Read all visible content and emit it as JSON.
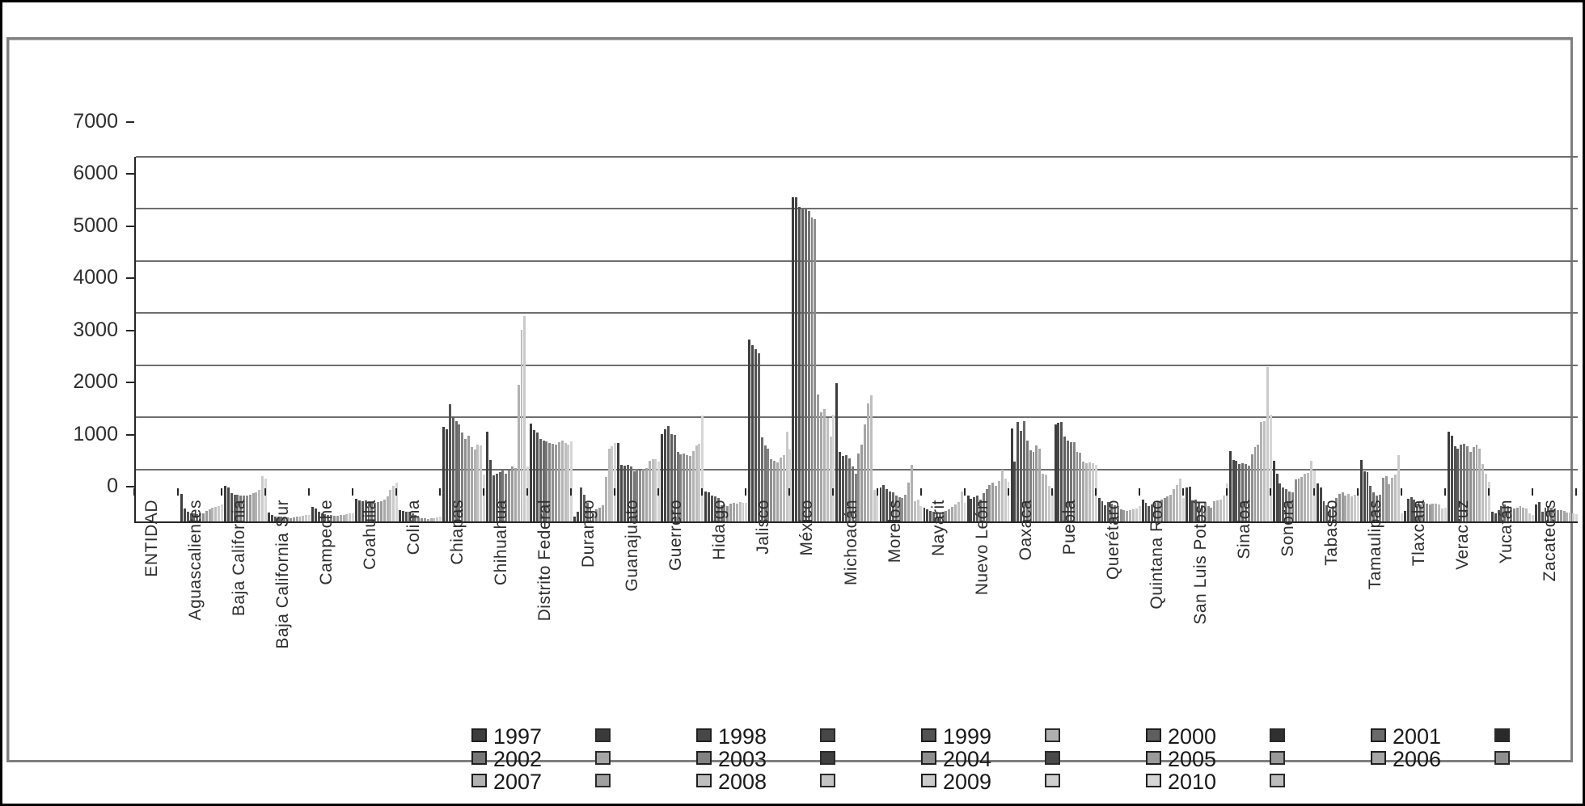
{
  "frame": {
    "outer_border_color": "#000000",
    "inner_border_color": "#7f7f7f",
    "background": "#ffffff"
  },
  "chart_data": {
    "type": "bar",
    "title": "",
    "xlabel": "",
    "ylabel": "",
    "ylim": [
      0,
      7000
    ],
    "yticks": [
      0,
      1000,
      2000,
      3000,
      4000,
      5000,
      6000,
      7000
    ],
    "grid": "horizontal",
    "legend_position": "bottom",
    "axis_header_category": "ENTIDAD",
    "years": [
      "1997",
      "1998",
      "1999",
      "2000",
      "2001",
      "2002",
      "2003",
      "2004",
      "2005",
      "2006",
      "2007",
      "2008",
      "2009",
      "2010"
    ],
    "year_colors": [
      "#3d3d3d",
      "#474747",
      "#525252",
      "#5e5e5e",
      "#6a6a6a",
      "#767676",
      "#828282",
      "#8e8e8e",
      "#9a9a9a",
      "#a6a6a6",
      "#b2b2b2",
      "#bebebe",
      "#cacaca",
      "#d6d6d6"
    ],
    "entities": [
      {
        "name": "Aguascalientes",
        "values": [
          535,
          250,
          180,
          160,
          150,
          140,
          150,
          160,
          200,
          230,
          260,
          280,
          300,
          320
        ]
      },
      {
        "name": "Baja California",
        "values": [
          690,
          650,
          540,
          520,
          510,
          500,
          490,
          500,
          520,
          540,
          560,
          600,
          870,
          830
        ]
      },
      {
        "name": "Baja California Sur",
        "values": [
          170,
          120,
          100,
          90,
          90,
          80,
          80,
          70,
          80,
          90,
          100,
          110,
          120,
          130
        ]
      },
      {
        "name": "Campeche",
        "values": [
          280,
          250,
          180,
          150,
          140,
          130,
          120,
          110,
          110,
          120,
          130,
          140,
          150,
          160
        ]
      },
      {
        "name": "Coahuila",
        "values": [
          430,
          410,
          390,
          400,
          380,
          370,
          360,
          370,
          390,
          420,
          480,
          610,
          690,
          745
        ]
      },
      {
        "name": "Colima",
        "values": [
          215,
          200,
          190,
          180,
          160,
          120,
          80,
          60,
          60,
          50,
          60,
          70,
          80,
          90
        ]
      },
      {
        "name": "Chiapas",
        "values": [
          1815,
          1765,
          2255,
          2000,
          1920,
          1870,
          1710,
          1590,
          1640,
          1430,
          1380,
          1480,
          1460,
          900
        ]
      },
      {
        "name": "Chihuahua",
        "values": [
          1730,
          1180,
          890,
          920,
          950,
          1000,
          920,
          980,
          1050,
          1030,
          2620,
          3675,
          3950,
          1050
        ]
      },
      {
        "name": "Distrito Federal",
        "values": [
          1880,
          1760,
          1710,
          1580,
          1560,
          1540,
          1500,
          1490,
          1480,
          1520,
          1560,
          1500,
          1480,
          1540
        ]
      },
      {
        "name": "Durango",
        "values": [
          100,
          180,
          655,
          520,
          355,
          250,
          150,
          230,
          270,
          310,
          855,
          1390,
          1450,
          1510
        ]
      },
      {
        "name": "Guanajuato",
        "values": [
          1510,
          1080,
          1065,
          1080,
          1050,
          965,
          1005,
          980,
          1005,
          1030,
          1165,
          1190,
          1200,
          1150
        ]
      },
      {
        "name": "Guerrero",
        "values": [
          1670,
          1775,
          1830,
          1670,
          1655,
          1330,
          1295,
          1310,
          1280,
          1260,
          1350,
          1460,
          1495,
          2040
        ]
      },
      {
        "name": "Hidalgo",
        "values": [
          570,
          555,
          490,
          475,
          455,
          305,
          320,
          295,
          340,
          360,
          340,
          365,
          350,
          360
        ]
      },
      {
        "name": "Jalisco",
        "values": [
          3495,
          3380,
          3300,
          3225,
          1620,
          1460,
          1390,
          1200,
          1160,
          1130,
          1230,
          1270,
          1725,
          1375
        ]
      },
      {
        "name": "México",
        "values": [
          6220,
          6220,
          6040,
          5990,
          5990,
          5960,
          5835,
          5810,
          2430,
          2100,
          2150,
          1980,
          1625,
          2050
        ]
      },
      {
        "name": "Michoacán",
        "values": [
          2650,
          1340,
          1260,
          1280,
          1210,
          1050,
          920,
          1300,
          1470,
          1870,
          2260,
          2420,
          600,
          500
        ]
      },
      {
        "name": "Morelos",
        "values": [
          650,
          700,
          620,
          580,
          560,
          490,
          470,
          450,
          520,
          740,
          1090,
          390,
          420,
          300
        ]
      },
      {
        "name": "Nayarit",
        "values": [
          265,
          230,
          200,
          180,
          170,
          160,
          180,
          200,
          230,
          280,
          330,
          370,
          580,
          350
        ]
      },
      {
        "name": "Nuevo León",
        "values": [
          490,
          440,
          465,
          490,
          415,
          545,
          620,
          700,
          750,
          680,
          770,
          1000,
          820,
          760
        ]
      },
      {
        "name": "Oaxaca",
        "values": [
          1780,
          1150,
          1910,
          1745,
          1930,
          1545,
          1370,
          1335,
          1465,
          1400,
          915,
          905,
          680,
          580
        ]
      },
      {
        "name": "Puebla",
        "values": [
          1870,
          1890,
          1905,
          1630,
          1545,
          1520,
          1520,
          1340,
          1320,
          1155,
          1120,
          1135,
          1120,
          1090
        ]
      },
      {
        "name": "Querétaro",
        "values": [
          455,
          390,
          315,
          365,
          340,
          315,
          300,
          235,
          215,
          200,
          215,
          235,
          250,
          300
        ]
      },
      {
        "name": "Quintana Roo",
        "values": [
          415,
          350,
          300,
          330,
          360,
          390,
          420,
          450,
          480,
          520,
          625,
          705,
          830,
          450
        ]
      },
      {
        "name": "San Luis Potosí",
        "values": [
          650,
          665,
          410,
          420,
          365,
          305,
          365,
          290,
          270,
          390,
          410,
          420,
          500,
          730
        ]
      },
      {
        "name": "Sinaloa",
        "values": [
          1345,
          1185,
          1160,
          1100,
          1125,
          1100,
          1075,
          1290,
          1425,
          1480,
          1910,
          1930,
          2960,
          2050
        ]
      },
      {
        "name": "Sonora",
        "values": [
          1170,
          910,
          730,
          650,
          620,
          580,
          560,
          800,
          830,
          855,
          910,
          935,
          1165,
          980
        ]
      },
      {
        "name": "Tabasco",
        "values": [
          730,
          650,
          390,
          310,
          235,
          290,
          450,
          530,
          555,
          500,
          530,
          480,
          510,
          540
        ]
      },
      {
        "name": "Tamaulipas",
        "values": [
          1180,
          970,
          945,
          685,
          555,
          490,
          510,
          840,
          865,
          710,
          840,
          900,
          1280,
          160
        ]
      },
      {
        "name": "Tlaxcala",
        "values": [
          200,
          440,
          460,
          425,
          345,
          320,
          370,
          345,
          320,
          345,
          345,
          320,
          245,
          260
        ]
      },
      {
        "name": "Veracruz",
        "values": [
          1730,
          1640,
          1445,
          1395,
          1470,
          1490,
          1445,
          1340,
          1425,
          1470,
          1395,
          1100,
          920,
          760
        ]
      },
      {
        "name": "Yucatán",
        "values": [
          190,
          150,
          215,
          295,
          320,
          295,
          270,
          245,
          270,
          295,
          270,
          245,
          150,
          130
        ]
      },
      {
        "name": "Zacatecas",
        "values": [
          320,
          375,
          190,
          270,
          295,
          270,
          245,
          220,
          220,
          195,
          170,
          170,
          150,
          140
        ]
      }
    ]
  },
  "legend": {
    "rows": [
      [
        {
          "label": "1997",
          "color": "#3d3d3d",
          "extra": "#3a3a3a"
        },
        {
          "label": "1998",
          "color": "#474747",
          "extra": "#474747"
        },
        {
          "label": "1999",
          "color": "#525252",
          "extra": "#b0b0b0"
        },
        {
          "label": "2000",
          "color": "#5e5e5e",
          "extra": "#303030"
        },
        {
          "label": "2001",
          "color": "#6a6a6a",
          "extra": "#2a2a2a"
        }
      ],
      [
        {
          "label": "2002",
          "color": "#767676",
          "extra": "#a6a6a6"
        },
        {
          "label": "2003",
          "color": "#828282",
          "extra": "#3f3f3f"
        },
        {
          "label": "2004",
          "color": "#8e8e8e",
          "extra": "#4a4a4a"
        },
        {
          "label": "2005",
          "color": "#9a9a9a",
          "extra": "#999999"
        },
        {
          "label": "2006",
          "color": "#a6a6a6",
          "extra": "#8f8f8f"
        }
      ],
      [
        {
          "label": "2007",
          "color": "#b2b2b2",
          "extra": "#a0a0a0"
        },
        {
          "label": "2008",
          "color": "#bebebe",
          "extra": "#c4c4c4"
        },
        {
          "label": "2009",
          "color": "#cacaca",
          "extra": "#d0d0d0"
        },
        {
          "label": "2010",
          "color": "#d6d6d6",
          "extra": "#bcbcbc"
        }
      ]
    ]
  }
}
